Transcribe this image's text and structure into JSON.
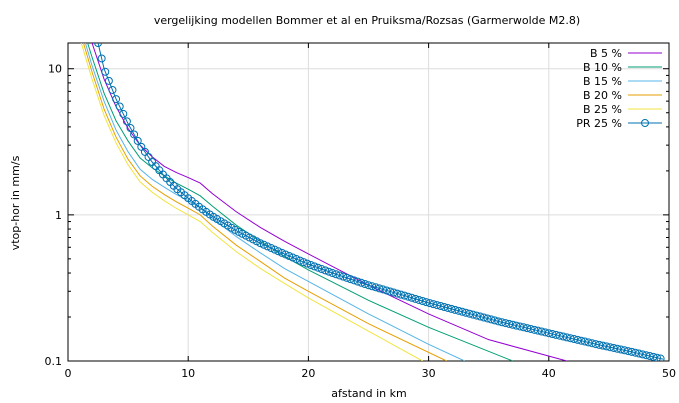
{
  "chart_data": {
    "type": "line",
    "title": "vergelijking modellen Bommer et al en Pruiksma/Rozsas (Garmerwolde M2.8)",
    "xlabel": "afstand in km",
    "ylabel": "vtop-hor in mm/s",
    "xlim": [
      0,
      50
    ],
    "ylim": [
      0.1,
      15
    ],
    "yscale": "log",
    "grid": true,
    "legend_position": "top-right",
    "x_ticks": [
      "0",
      "10",
      "20",
      "30",
      "40",
      "50"
    ],
    "y_ticks": [
      "0.1",
      "1",
      "10"
    ],
    "series": [
      {
        "name": "B  5 %",
        "color": "#9400d3",
        "marker": "none",
        "x": [
          1,
          2,
          3,
          4,
          5,
          6,
          7,
          8,
          9,
          10,
          11,
          12,
          14,
          16,
          18,
          20,
          25,
          30,
          35,
          41.5
        ],
        "y": [
          25,
          15,
          8.5,
          5.5,
          3.9,
          3.0,
          2.5,
          2.15,
          1.95,
          1.8,
          1.65,
          1.4,
          1.05,
          0.82,
          0.66,
          0.54,
          0.33,
          0.21,
          0.14,
          0.1
        ]
      },
      {
        "name": "B  10 %",
        "color": "#009e73",
        "marker": "none",
        "x": [
          1,
          2,
          3,
          4,
          5,
          6,
          7,
          8,
          9,
          10,
          11,
          12,
          14,
          16,
          18,
          20,
          25,
          30,
          37
        ],
        "y": [
          22,
          12,
          6.8,
          4.4,
          3.2,
          2.45,
          2.1,
          1.85,
          1.65,
          1.5,
          1.35,
          1.15,
          0.85,
          0.66,
          0.52,
          0.42,
          0.26,
          0.17,
          0.1
        ]
      },
      {
        "name": "B  15 %",
        "color": "#56b4e9",
        "marker": "none",
        "x": [
          1,
          2,
          3,
          4,
          5,
          6,
          7,
          8,
          9,
          10,
          11,
          12,
          14,
          16,
          18,
          20,
          25,
          30,
          33
        ],
        "y": [
          20,
          10.5,
          6,
          3.8,
          2.7,
          2.05,
          1.75,
          1.55,
          1.38,
          1.25,
          1.12,
          0.95,
          0.71,
          0.55,
          0.43,
          0.35,
          0.21,
          0.13,
          0.1
        ]
      },
      {
        "name": "B  20 %",
        "color": "#e69f00",
        "marker": "none",
        "x": [
          1,
          2,
          3,
          4,
          5,
          6,
          7,
          8,
          9,
          10,
          11,
          12,
          14,
          16,
          18,
          20,
          25,
          31.5
        ],
        "y": [
          18,
          9.5,
          5.3,
          3.4,
          2.4,
          1.85,
          1.57,
          1.38,
          1.23,
          1.11,
          1.0,
          0.84,
          0.62,
          0.48,
          0.37,
          0.3,
          0.18,
          0.1
        ]
      },
      {
        "name": "B  25 %",
        "color": "#f0e442",
        "marker": "none",
        "x": [
          1,
          2,
          3,
          4,
          5,
          6,
          7,
          8,
          9,
          10,
          11,
          12,
          14,
          16,
          18,
          20,
          25,
          29.5
        ],
        "y": [
          16,
          8.5,
          4.8,
          3.1,
          2.2,
          1.68,
          1.43,
          1.25,
          1.11,
          1.0,
          0.9,
          0.76,
          0.56,
          0.43,
          0.34,
          0.27,
          0.16,
          0.1
        ]
      },
      {
        "name": "PR  25 %",
        "color": "#0072b2",
        "marker": "circle",
        "x": [
          2.5,
          3,
          4,
          5,
          6,
          7,
          8,
          9,
          10,
          11,
          12,
          14,
          16,
          18,
          20,
          22,
          25,
          28,
          30,
          33,
          36,
          40,
          44,
          47,
          49.5
        ],
        "y": [
          15,
          10,
          6.2,
          4.2,
          3.0,
          2.3,
          1.85,
          1.52,
          1.3,
          1.12,
          0.98,
          0.78,
          0.64,
          0.54,
          0.46,
          0.4,
          0.33,
          0.28,
          0.25,
          0.215,
          0.185,
          0.155,
          0.13,
          0.115,
          0.103
        ]
      }
    ]
  }
}
